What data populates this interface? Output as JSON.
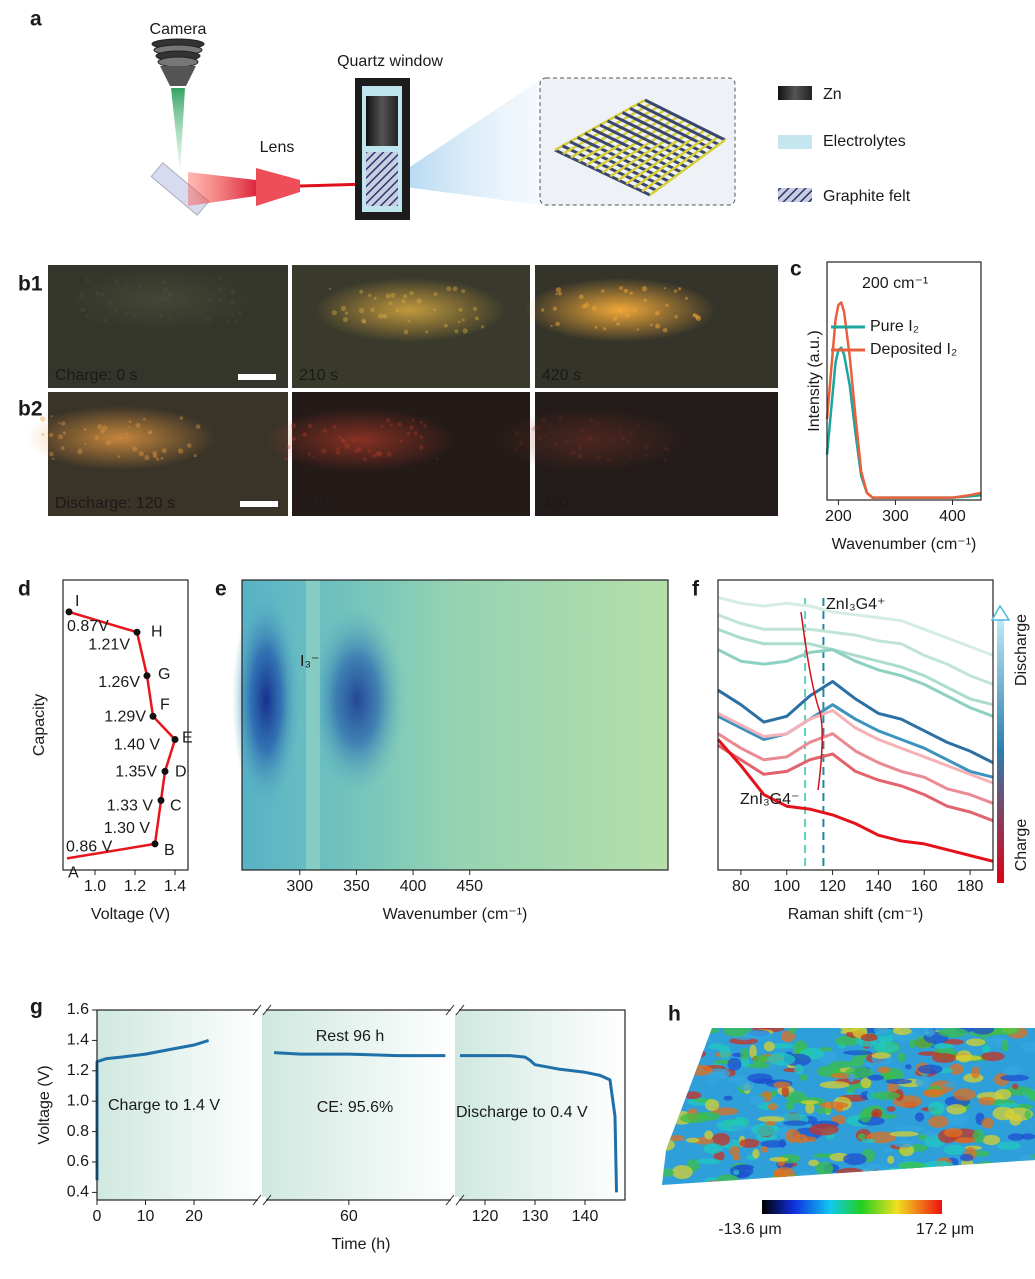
{
  "panel_labels": [
    "a",
    "b1",
    "b2",
    "c",
    "d",
    "e",
    "f",
    "g",
    "h"
  ],
  "setup": {
    "camera": "Camera",
    "lens": "Lens",
    "window": "Quartz window",
    "legend": [
      "Zn",
      "Electrolytes",
      "Graphite felt"
    ]
  },
  "photos": [
    [
      "Charge: 0 s",
      "210 s",
      "420 s"
    ],
    [
      "Discharge: 120 s",
      "210 s",
      "420 s"
    ]
  ],
  "chart_data": [
    {
      "type": "line",
      "annotation": "200 cm⁻¹",
      "x_label": "Wavenumber (cm⁻¹)",
      "y_label": "Intensity (a.u.)",
      "x": [
        180,
        190,
        195,
        200,
        205,
        210,
        220,
        230,
        240,
        250,
        260,
        280,
        300,
        350,
        400,
        430,
        450
      ],
      "xlim": [
        180,
        450
      ],
      "xticks": [
        200,
        300,
        400
      ],
      "ylim": [
        0,
        100
      ],
      "series": [
        {
          "name": "Pure I₂",
          "color": "#1ba59c",
          "values": [
            19,
            45,
            58,
            63,
            64,
            61,
            48,
            28,
            10,
            3,
            1,
            1,
            1,
            1,
            1,
            1.5,
            2
          ]
        },
        {
          "name": "Deposited I₂",
          "color": "#e8603c",
          "values": [
            34,
            62,
            76,
            82,
            83,
            79,
            60,
            35,
            12,
            3,
            1,
            1,
            1,
            1,
            1,
            2,
            3
          ]
        }
      ]
    },
    {
      "type": "line",
      "x_label": "Voltage (V)",
      "y_label": "Capacity",
      "color": "#e8141c",
      "xlim": [
        0.84,
        1.465
      ],
      "xticks": [
        {
          "value": 1,
          "label": "1.0"
        },
        1.2,
        1.4
      ],
      "ylim": [
        0,
        100
      ],
      "x": [
        0.86,
        1.3,
        1.33,
        1.35,
        1.4,
        1.29,
        1.26,
        1.21,
        0.87
      ],
      "values": [
        4,
        9,
        24,
        34,
        45,
        53,
        67,
        82,
        89
      ],
      "point_labels": [
        "A",
        "B",
        "C",
        "D",
        "E",
        "F",
        "G",
        "H",
        "I"
      ],
      "x_labels": [
        "0.86 V",
        "1.30 V",
        "1.33 V",
        "1.35V",
        "1.40 V",
        "1.29V",
        "1.26V",
        "1.21V",
        "0.87V"
      ]
    },
    {
      "type": "heatmap",
      "annotation": "I₃⁻",
      "x_label": "Wavenumber (cm⁻¹)",
      "xlim": [
        249,
        625
      ],
      "xticks": [
        300,
        350,
        400,
        450
      ]
    },
    {
      "type": "line",
      "x_label": "Raman shift (cm⁻¹)",
      "x": [
        70,
        80,
        90,
        100,
        110,
        120,
        130,
        140,
        150,
        160,
        170,
        180,
        190
      ],
      "xlim": [
        70,
        190
      ],
      "xticks": [
        80,
        100,
        120,
        140,
        160,
        180
      ],
      "ylim": [
        0,
        100
      ],
      "reference_lines": [
        {
          "value": 108,
          "color": "#5fd0c0"
        },
        {
          "value": 116,
          "color": "#1f8a9a"
        }
      ],
      "upper_label": "ZnI₃G4⁺",
      "lower_label": "ZnI₃G4⁻",
      "top_arrow_label": "Discharge",
      "bottom_arrow_label": "Charge",
      "series": [
        {
          "color": "#d4ede2",
          "values": [
            94,
            92,
            91,
            92,
            91,
            89,
            88,
            87,
            86,
            83,
            80,
            77,
            74
          ]
        },
        {
          "color": "#c0e5d6",
          "values": [
            88,
            85,
            83,
            83,
            83,
            82,
            81,
            79,
            78,
            74,
            71,
            67,
            64
          ]
        },
        {
          "color": "#acdccb",
          "values": [
            83,
            80,
            78,
            78,
            78,
            76,
            74,
            72,
            70,
            67,
            63,
            59,
            57
          ]
        },
        {
          "color": "#8dd1c2",
          "values": [
            76,
            72,
            71,
            72,
            75,
            76,
            72,
            69,
            67,
            64,
            60,
            56,
            53
          ]
        },
        {
          "color": "#2b6fa3",
          "values": [
            62,
            57,
            51,
            53,
            60,
            65,
            59,
            54,
            52,
            48,
            44,
            41,
            37
          ]
        },
        {
          "color": "#3d93bf",
          "values": [
            53,
            49,
            45,
            47,
            52,
            57,
            52,
            48,
            45,
            42,
            38,
            34,
            32
          ]
        },
        {
          "color": "#f5b3b8",
          "values": [
            54,
            50,
            46,
            47,
            52,
            55,
            49,
            45,
            42,
            39,
            36,
            33,
            30
          ]
        },
        {
          "color": "#ea8a92",
          "values": [
            47,
            42,
            38,
            39,
            44,
            47,
            41,
            37,
            34,
            32,
            28,
            26,
            23
          ]
        },
        {
          "color": "#e2636b",
          "values": [
            43,
            38,
            33,
            34,
            38,
            40,
            34,
            31,
            29,
            26,
            22,
            20,
            17
          ]
        },
        {
          "color": "#e3121b",
          "values": [
            45,
            36,
            26,
            22,
            21,
            19,
            16,
            12,
            10,
            9,
            7,
            5,
            3
          ]
        }
      ]
    },
    {
      "type": "line",
      "x_label": "Time (h)",
      "y_label": "Voltage (V)",
      "color": "#1f6fa8",
      "ylim": [
        0.35,
        1.6
      ],
      "yticks": [
        0.4,
        0.6,
        0.8,
        {
          "value": 1,
          "label": "1.0"
        },
        1.2,
        1.4,
        1.6
      ],
      "x_segments": [
        {
          "xlim": [
            0,
            34
          ],
          "xticks": [
            0,
            10,
            20
          ]
        },
        {
          "xlim": [
            24,
            104
          ],
          "xticks": [
            60
          ]
        },
        {
          "xlim": [
            114,
            148
          ],
          "xticks": [
            120,
            130,
            140
          ]
        }
      ],
      "annotations": [
        "Rest 96 h",
        "Charge to 1.4 V",
        "CE: 95.6%",
        "Discharge to 0.4 V"
      ],
      "series": [
        {
          "x": [
            0,
            0,
            2,
            5,
            10,
            15,
            20,
            23
          ],
          "values": [
            0.48,
            1.26,
            1.28,
            1.29,
            1.31,
            1.34,
            1.37,
            1.4
          ]
        },
        {
          "x": [
            29,
            40,
            60,
            80,
            100
          ],
          "values": [
            1.32,
            1.31,
            1.31,
            1.3,
            1.3
          ]
        },
        {
          "x": [
            115,
            120,
            125,
            128,
            129,
            130,
            135,
            140,
            143,
            145,
            146,
            146.3
          ],
          "values": [
            1.3,
            1.3,
            1.3,
            1.29,
            1.27,
            1.24,
            1.21,
            1.19,
            1.17,
            1.14,
            0.9,
            0.4
          ]
        }
      ]
    }
  ],
  "surface": {
    "colorbar_labels": [
      "-13.6 μm",
      "17.2 μm"
    ]
  }
}
